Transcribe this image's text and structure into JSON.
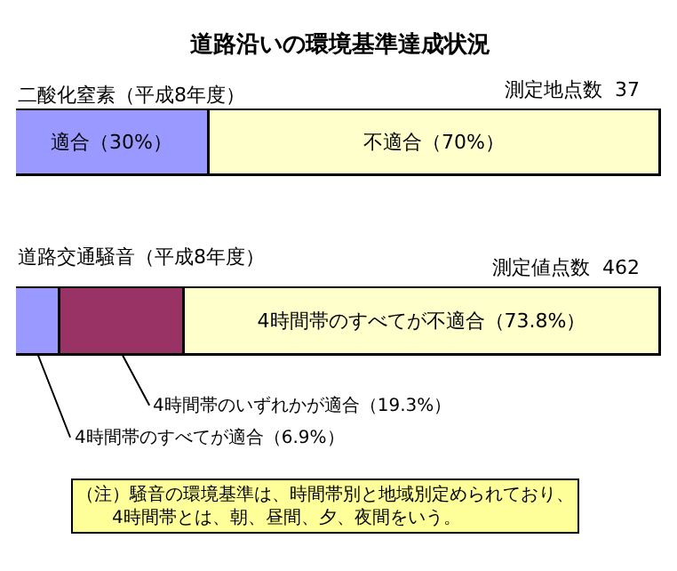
{
  "chart_data": [
    {
      "type": "bar",
      "orientation": "horizontal",
      "stacked": true,
      "title": "道路沿いの環境基準達成状況",
      "subtitle": "二酸化窒素（平成8年度）",
      "annotations": [
        "測定地点数  37"
      ],
      "categories": [
        null
      ],
      "xlim": [
        0,
        100
      ],
      "tick_labels": false,
      "series": [
        {
          "color": "#9999ff",
          "values": [
            30
          ],
          "value_labels": [
            "適合（30%）"
          ]
        },
        {
          "color": "#ffffcc",
          "values": [
            70
          ],
          "value_labels": [
            "不適合（70%）"
          ]
        }
      ]
    },
    {
      "type": "bar",
      "orientation": "horizontal",
      "stacked": true,
      "title": "道路交通騒音（平成8年度）",
      "annotations": [
        "測定値点数  462",
        "（注）騒音の環境基準は、時間帯別と地域別定められており、\n　　4時間帯とは、朝、昼間、夕、夜間をいう。"
      ],
      "categories": [
        null
      ],
      "xlim": [
        0,
        100
      ],
      "tick_labels": false,
      "series": [
        {
          "color": "#9999ff",
          "values": [
            6.9
          ],
          "value_labels": [
            "4時間帯のすべてが適合（6.9%）"
          ]
        },
        {
          "color": "#993366",
          "values": [
            19.3
          ],
          "value_labels": [
            "4時間帯のいずれかが適合（19.3%）"
          ]
        },
        {
          "color": "#ffffcc",
          "values": [
            73.8
          ],
          "value_labels": [
            "4時間帯のすべてが不適合（73.8%）"
          ]
        }
      ]
    }
  ]
}
